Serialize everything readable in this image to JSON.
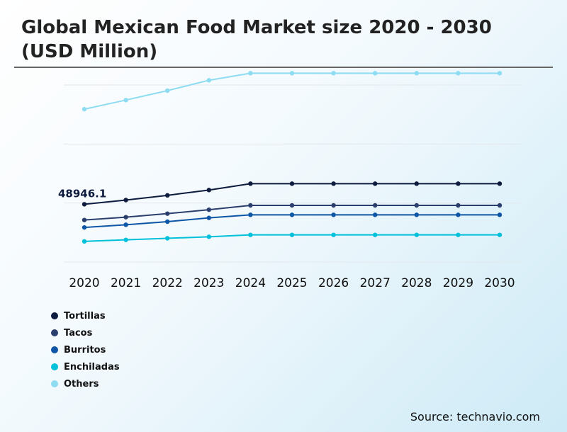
{
  "chart_data": {
    "type": "line",
    "title": "Global Mexican Food Market size 2020 - 2030 (USD Million)",
    "categories": [
      "2020",
      "2021",
      "2022",
      "2023",
      "2024",
      "2025",
      "2026",
      "2027",
      "2028",
      "2029",
      "2030"
    ],
    "ylim": [
      0,
      130000
    ],
    "grid": true,
    "annotation": {
      "text": "48946.1",
      "series": "Tortillas",
      "category": "2020"
    },
    "series": [
      {
        "name": "Tortillas",
        "color": "#0d1b3e",
        "values": [
          48946.1,
          52500,
          56500,
          61000,
          66400,
          66400,
          66400,
          66400,
          66400,
          66400,
          66400
        ]
      },
      {
        "name": "Tacos",
        "color": "#2b3f6e",
        "values": [
          35600,
          38000,
          41000,
          44300,
          48000,
          48000,
          48000,
          48000,
          48000,
          48000,
          48000
        ]
      },
      {
        "name": "Burritos",
        "color": "#0d56a6",
        "values": [
          29300,
          31600,
          34200,
          37400,
          40000,
          40000,
          40000,
          40000,
          40000,
          40000,
          40000
        ]
      },
      {
        "name": "Enchiladas",
        "color": "#00c0da",
        "values": [
          17500,
          18800,
          20100,
          21400,
          23000,
          23000,
          23000,
          23000,
          23000,
          23000,
          23000
        ]
      },
      {
        "name": "Others",
        "color": "#8ddcf2",
        "values": [
          129500,
          137200,
          145200,
          154000,
          160000,
          160000,
          160000,
          160000,
          160000,
          160000,
          160000
        ]
      }
    ],
    "legend": [
      "Tortillas",
      "Tacos",
      "Burritos",
      "Enchiladas",
      "Others"
    ],
    "legend_position": "bottom-left"
  },
  "source": "Source: technavio.com"
}
